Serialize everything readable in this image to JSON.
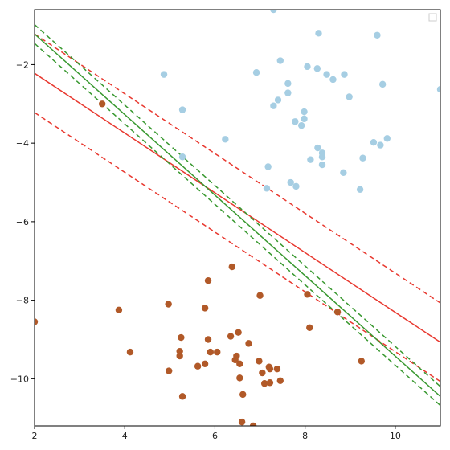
{
  "chart_data": {
    "type": "scatter",
    "title": "",
    "xlabel": "",
    "ylabel": "",
    "xlim": [
      2,
      11
    ],
    "ylim": [
      -11.2,
      -0.6
    ],
    "xticks": [
      2,
      4,
      6,
      8,
      10
    ],
    "yticks": [
      -2,
      -4,
      -6,
      -8,
      -10
    ],
    "grid": false,
    "legend": "top-right, empty",
    "series": [
      {
        "color": "#a6cee3",
        "points": [
          [
            7.3,
            -0.6
          ],
          [
            8.3,
            -1.2
          ],
          [
            9.6,
            -1.25
          ],
          [
            7.45,
            -1.9
          ],
          [
            8.05,
            -2.05
          ],
          [
            8.27,
            -2.1
          ],
          [
            6.92,
            -2.2
          ],
          [
            4.87,
            -2.25
          ],
          [
            8.48,
            -2.25
          ],
          [
            8.87,
            -2.25
          ],
          [
            8.62,
            -2.38
          ],
          [
            7.62,
            -2.48
          ],
          [
            9.72,
            -2.5
          ],
          [
            11.0,
            -2.63
          ],
          [
            7.62,
            -2.72
          ],
          [
            7.4,
            -2.9
          ],
          [
            8.98,
            -2.82
          ],
          [
            7.3,
            -3.05
          ],
          [
            5.28,
            -3.15
          ],
          [
            7.98,
            -3.2
          ],
          [
            7.98,
            -3.38
          ],
          [
            7.78,
            -3.45
          ],
          [
            7.92,
            -3.55
          ],
          [
            6.23,
            -3.9
          ],
          [
            9.82,
            -3.88
          ],
          [
            9.52,
            -3.98
          ],
          [
            9.67,
            -4.05
          ],
          [
            8.28,
            -4.12
          ],
          [
            8.38,
            -4.25
          ],
          [
            8.38,
            -4.35
          ],
          [
            5.28,
            -4.35
          ],
          [
            8.12,
            -4.42
          ],
          [
            9.28,
            -4.38
          ],
          [
            8.38,
            -4.55
          ],
          [
            7.18,
            -4.6
          ],
          [
            8.85,
            -4.75
          ],
          [
            7.68,
            -5.0
          ],
          [
            7.8,
            -5.1
          ],
          [
            7.15,
            -5.15
          ],
          [
            9.22,
            -5.18
          ]
        ]
      },
      {
        "color": "#b15928",
        "points": [
          [
            3.5,
            -3.0
          ],
          [
            5.85,
            -7.5
          ],
          [
            6.38,
            -7.15
          ],
          [
            7.0,
            -7.88
          ],
          [
            8.05,
            -7.85
          ],
          [
            3.87,
            -8.25
          ],
          [
            5.78,
            -8.2
          ],
          [
            4.97,
            -8.1
          ],
          [
            8.72,
            -8.3
          ],
          [
            2.0,
            -8.55
          ],
          [
            8.1,
            -8.7
          ],
          [
            6.52,
            -8.82
          ],
          [
            6.35,
            -8.92
          ],
          [
            5.25,
            -8.95
          ],
          [
            5.85,
            -9.0
          ],
          [
            6.75,
            -9.1
          ],
          [
            4.12,
            -9.32
          ],
          [
            5.22,
            -9.3
          ],
          [
            5.9,
            -9.32
          ],
          [
            6.05,
            -9.32
          ],
          [
            5.22,
            -9.42
          ],
          [
            6.48,
            -9.42
          ],
          [
            6.45,
            -9.52
          ],
          [
            6.98,
            -9.55
          ],
          [
            9.25,
            -9.55
          ],
          [
            6.55,
            -9.62
          ],
          [
            5.78,
            -9.62
          ],
          [
            5.62,
            -9.68
          ],
          [
            7.2,
            -9.7
          ],
          [
            7.22,
            -9.75
          ],
          [
            7.38,
            -9.75
          ],
          [
            4.98,
            -9.8
          ],
          [
            7.05,
            -9.85
          ],
          [
            6.55,
            -9.98
          ],
          [
            7.45,
            -10.05
          ],
          [
            7.1,
            -10.12
          ],
          [
            7.22,
            -10.1
          ],
          [
            6.62,
            -10.4
          ],
          [
            5.28,
            -10.45
          ],
          [
            6.6,
            -11.1
          ],
          [
            6.85,
            -11.2
          ]
        ]
      }
    ],
    "lines": [
      {
        "color": "#e8382f",
        "dash": false,
        "x": [
          2,
          11
        ],
        "y": [
          -2.22,
          -9.07
        ]
      },
      {
        "color": "#e8382f",
        "dash": true,
        "x": [
          2,
          11
        ],
        "y": [
          -1.22,
          -8.07
        ]
      },
      {
        "color": "#e8382f",
        "dash": true,
        "x": [
          2,
          11
        ],
        "y": [
          -3.22,
          -10.07
        ]
      },
      {
        "color": "#38982f",
        "dash": false,
        "x": [
          2,
          11
        ],
        "y": [
          -1.22,
          -10.45
        ]
      },
      {
        "color": "#38982f",
        "dash": true,
        "x": [
          2,
          11
        ],
        "y": [
          -0.98,
          -10.2
        ]
      },
      {
        "color": "#38982f",
        "dash": true,
        "x": [
          2,
          11
        ],
        "y": [
          -1.46,
          -10.68
        ]
      }
    ]
  }
}
